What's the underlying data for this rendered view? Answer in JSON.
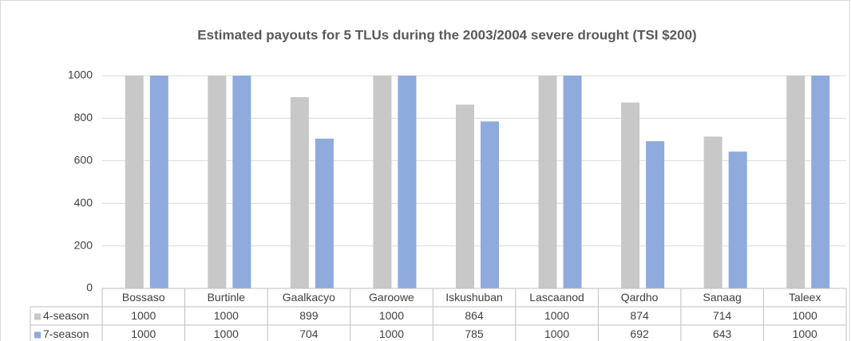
{
  "chart_data": {
    "type": "bar",
    "title": "Estimated payouts for 5 TLUs during the 2003/2004 severe drought (TSI $200)",
    "categories": [
      "Bossaso",
      "Burtinle",
      "Gaalkacyo",
      "Garoowe",
      "Iskushuban",
      "Lascaanod",
      "Qardho",
      "Sanaag",
      "Taleex"
    ],
    "series": [
      {
        "name": "4-season",
        "color": "#c8c8c8",
        "values": [
          1000,
          1000,
          899,
          1000,
          864,
          1000,
          874,
          714,
          1000
        ]
      },
      {
        "name": "7-season",
        "color": "#8faadc",
        "values": [
          1000,
          1000,
          704,
          1000,
          785,
          1000,
          692,
          643,
          1000
        ]
      }
    ],
    "ylim": [
      0,
      1000
    ],
    "yticks": [
      0,
      200,
      400,
      600,
      800,
      1000
    ],
    "grid": true,
    "data_table": true
  }
}
